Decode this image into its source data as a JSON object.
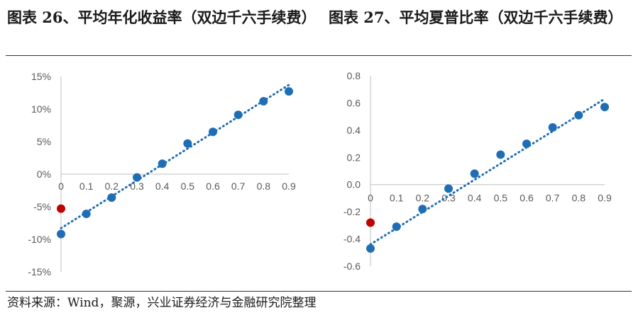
{
  "charts": [
    {
      "title": "图表 26、平均年化收益率（双边千六手续费）"
    },
    {
      "title": "图表 27、平均夏普比率（双边千六手续费）"
    }
  ],
  "footer": {
    "source": "资料来源：Wind，聚源，兴业证券经济与金融研究院整理"
  },
  "colors": {
    "series": "#1f6eb5",
    "highlight": "#c00000",
    "trend": "#1f6eb5",
    "axis": "#bfbfbf"
  },
  "chart_data": [
    {
      "type": "scatter",
      "title": "图表 26、平均年化收益率（双边千六手续费）",
      "xlabel": "",
      "ylabel": "",
      "xlim": [
        0,
        0.9
      ],
      "ylim": [
        -0.15,
        0.15
      ],
      "x_ticks": [
        "0",
        "0.1",
        "0.2",
        "0.3",
        "0.4",
        "0.5",
        "0.6",
        "0.7",
        "0.8",
        "0.9"
      ],
      "x_tick_values": [
        0,
        0.1,
        0.2,
        0.3,
        0.4,
        0.5,
        0.6,
        0.7,
        0.8,
        0.9
      ],
      "y_ticks": [
        "15%",
        "10%",
        "5%",
        "0%",
        "-5%",
        "-10%",
        "-15%"
      ],
      "y_tick_values": [
        0.15,
        0.1,
        0.05,
        0,
        -0.05,
        -0.1,
        -0.15
      ],
      "highlight_points": [
        {
          "x": 0,
          "y": -0.053
        }
      ],
      "series": [
        {
          "x": [
            0,
            0.1,
            0.2,
            0.3,
            0.4,
            0.5,
            0.6,
            0.7,
            0.8,
            0.9
          ],
          "y": [
            -0.092,
            -0.061,
            -0.036,
            -0.005,
            0.016,
            0.047,
            0.065,
            0.091,
            0.112,
            0.127
          ]
        }
      ],
      "trendline": {
        "x": [
          0,
          0.9
        ],
        "y": [
          -0.083,
          0.137
        ]
      },
      "grid": false,
      "legend": "none"
    },
    {
      "type": "scatter",
      "title": "图表 27、平均夏普比率（双边千六手续费）",
      "xlabel": "",
      "ylabel": "",
      "xlim": [
        0,
        0.9
      ],
      "ylim": [
        -0.6,
        0.8
      ],
      "x_ticks": [
        "0",
        "0.1",
        "0.2",
        "0.3",
        "0.4",
        "0.5",
        "0.6",
        "0.7",
        "0.8",
        "0.9"
      ],
      "x_tick_values": [
        0,
        0.1,
        0.2,
        0.3,
        0.4,
        0.5,
        0.6,
        0.7,
        0.8,
        0.9
      ],
      "y_ticks": [
        "0.8",
        "0.6",
        "0.4",
        "0.2",
        "0.0",
        "-0.2",
        "-0.4",
        "-0.6"
      ],
      "y_tick_values": [
        0.8,
        0.6,
        0.4,
        0.2,
        0.0,
        -0.2,
        -0.4,
        -0.6
      ],
      "highlight_points": [
        {
          "x": 0,
          "y": -0.28
        }
      ],
      "series": [
        {
          "x": [
            0,
            0.1,
            0.2,
            0.3,
            0.4,
            0.5,
            0.6,
            0.7,
            0.8,
            0.9
          ],
          "y": [
            -0.47,
            -0.31,
            -0.18,
            -0.03,
            0.08,
            0.22,
            0.3,
            0.42,
            0.51,
            0.57
          ]
        }
      ],
      "trendline": {
        "x": [
          0,
          0.9
        ],
        "y": [
          -0.44,
          0.63
        ]
      },
      "grid": false,
      "legend": "none"
    }
  ]
}
